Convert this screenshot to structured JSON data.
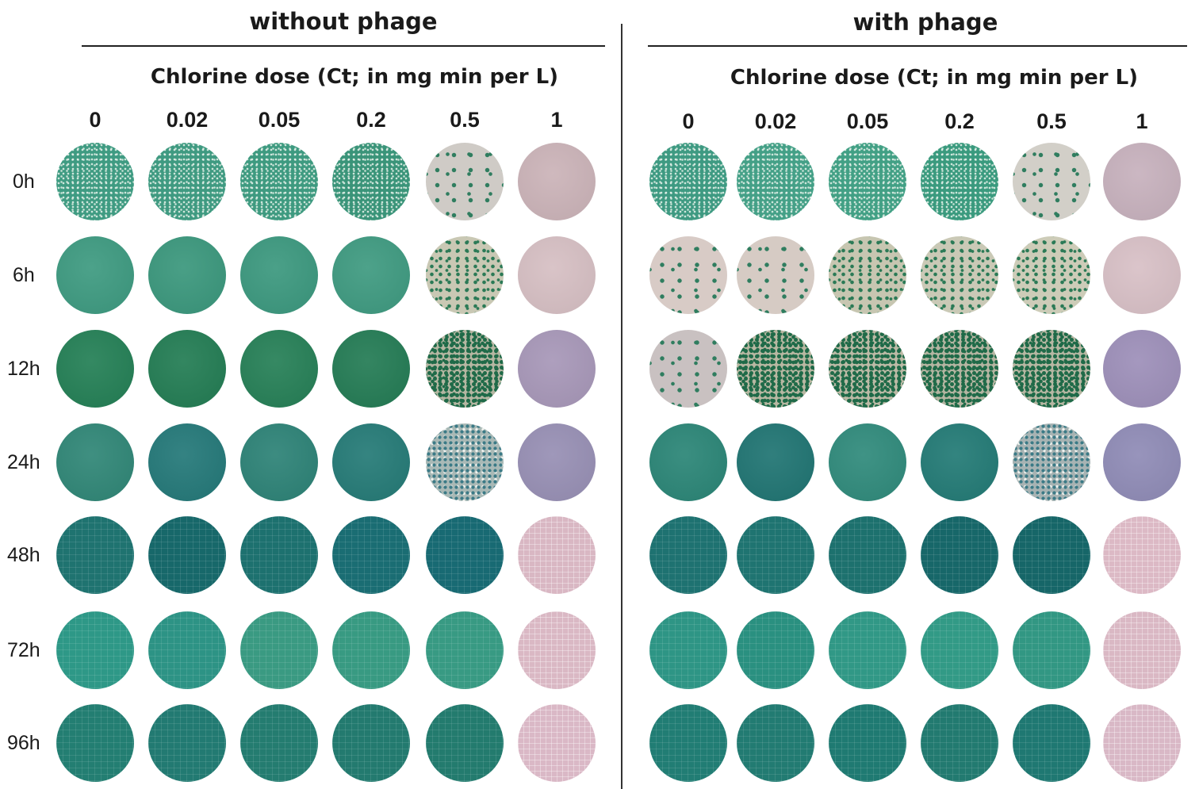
{
  "panels": [
    {
      "title": "without phage",
      "axis_title": "Chlorine dose (Ct; in mg min per L)",
      "doses": [
        "0",
        "0.02",
        "0.05",
        "0.2",
        "0.5",
        "1"
      ]
    },
    {
      "title": "with phage",
      "axis_title": "Chlorine dose (Ct; in mg min per L)",
      "doses": [
        "0",
        "0.02",
        "0.05",
        "0.2",
        "0.5",
        "1"
      ]
    }
  ],
  "times": [
    "0h",
    "6h",
    "12h",
    "24h",
    "48h",
    "72h",
    "96h"
  ],
  "plates": [
    [
      [
        {
          "type": "dense",
          "color": "#3f9b82"
        },
        {
          "type": "dense",
          "color": "#3f9a81"
        },
        {
          "type": "dense",
          "color": "#3e9a80"
        },
        {
          "type": "dense",
          "color": "#3a9479"
        },
        {
          "type": "sparse",
          "color": "#cfcbc6"
        },
        {
          "type": "solid",
          "color": "#cbb3b8"
        }
      ],
      [
        {
          "type": "solid",
          "color": "#3d9a80"
        },
        {
          "type": "solid",
          "color": "#3a977c"
        },
        {
          "type": "solid",
          "color": "#3b987e"
        },
        {
          "type": "solid",
          "color": "#3e9a80"
        },
        {
          "type": "speck",
          "color": "#c9c8b4"
        },
        {
          "type": "solid",
          "color": "#d6bfc3"
        }
      ],
      [
        {
          "type": "solid",
          "color": "#237f55"
        },
        {
          "type": "solid",
          "color": "#227c53"
        },
        {
          "type": "solid",
          "color": "#257f56"
        },
        {
          "type": "solid",
          "color": "#237b54"
        },
        {
          "type": "speck-dense",
          "color": "#b5b6a2"
        },
        {
          "type": "solid",
          "color": "#a797b8"
        }
      ],
      [
        {
          "type": "solid",
          "color": "#2f8676"
        },
        {
          "type": "solid",
          "color": "#237878"
        },
        {
          "type": "solid",
          "color": "#2c8276"
        },
        {
          "type": "solid",
          "color": "#247a76"
        },
        {
          "type": "speck-blue",
          "color": "#a9b9b6"
        },
        {
          "type": "solid",
          "color": "#978fb4"
        }
      ],
      [
        {
          "type": "grid",
          "color": "#1f7370"
        },
        {
          "type": "grid",
          "color": "#17686a"
        },
        {
          "type": "grid",
          "color": "#1d716f"
        },
        {
          "type": "grid",
          "color": "#1a6d73"
        },
        {
          "type": "grid",
          "color": "#186a73"
        },
        {
          "type": "pink-grid",
          "color": "#d9b7c3"
        }
      ],
      [
        {
          "type": "grid",
          "color": "#2e9887"
        },
        {
          "type": "grid",
          "color": "#2d9385"
        },
        {
          "type": "grid",
          "color": "#3a9a82"
        },
        {
          "type": "grid",
          "color": "#389a82"
        },
        {
          "type": "grid",
          "color": "#389a83"
        },
        {
          "type": "pink-grid",
          "color": "#dab8c4"
        }
      ],
      [
        {
          "type": "grid",
          "color": "#237e72"
        },
        {
          "type": "grid",
          "color": "#227a72"
        },
        {
          "type": "grid",
          "color": "#247c70"
        },
        {
          "type": "grid",
          "color": "#237a6f"
        },
        {
          "type": "grid",
          "color": "#237b6e"
        },
        {
          "type": "pink-grid",
          "color": "#dab8c6"
        }
      ]
    ],
    [
      [
        {
          "type": "dense",
          "color": "#3e9a82"
        },
        {
          "type": "dense",
          "color": "#44a087"
        },
        {
          "type": "dense",
          "color": "#42a085"
        },
        {
          "type": "dense",
          "color": "#3a9a7e"
        },
        {
          "type": "sparse",
          "color": "#d2cfc8"
        },
        {
          "type": "solid",
          "color": "#c7b1bd"
        }
      ],
      [
        {
          "type": "sparse-pink",
          "color": "#d8cbc6"
        },
        {
          "type": "sparse-pink",
          "color": "#d6cbc4"
        },
        {
          "type": "speck",
          "color": "#c7c6b1"
        },
        {
          "type": "speck",
          "color": "#cac9b6"
        },
        {
          "type": "speck",
          "color": "#cdccb8"
        },
        {
          "type": "solid",
          "color": "#d8c0c6"
        }
      ],
      [
        {
          "type": "sparse-pink",
          "color": "#c9c1c1"
        },
        {
          "type": "speck-dense",
          "color": "#b8b7a2"
        },
        {
          "type": "speck-dense",
          "color": "#bcbaa6"
        },
        {
          "type": "speck-dense",
          "color": "#b5b5a2"
        },
        {
          "type": "speck-dense",
          "color": "#b7b7a3"
        },
        {
          "type": "solid",
          "color": "#9d8fb9"
        }
      ],
      [
        {
          "type": "solid",
          "color": "#2a8576"
        },
        {
          "type": "solid",
          "color": "#1f7472"
        },
        {
          "type": "solid",
          "color": "#2f8a7b"
        },
        {
          "type": "solid",
          "color": "#227a75"
        },
        {
          "type": "speck-blue",
          "color": "#a7b3b3"
        },
        {
          "type": "solid",
          "color": "#8f8bb6"
        }
      ],
      [
        {
          "type": "grid",
          "color": "#1e7271"
        },
        {
          "type": "grid",
          "color": "#1f7471"
        },
        {
          "type": "grid",
          "color": "#1d716e"
        },
        {
          "type": "grid",
          "color": "#176769"
        },
        {
          "type": "grid",
          "color": "#166668"
        },
        {
          "type": "pink-grid",
          "color": "#dcb9c5"
        }
      ],
      [
        {
          "type": "grid",
          "color": "#2e9585"
        },
        {
          "type": "grid",
          "color": "#2a9080"
        },
        {
          "type": "grid",
          "color": "#319886"
        },
        {
          "type": "grid",
          "color": "#329a86"
        },
        {
          "type": "grid",
          "color": "#329783"
        },
        {
          "type": "pink-grid",
          "color": "#dab8c4"
        }
      ],
      [
        {
          "type": "grid",
          "color": "#217d74"
        },
        {
          "type": "grid",
          "color": "#227b72"
        },
        {
          "type": "grid",
          "color": "#1f7a72"
        },
        {
          "type": "grid",
          "color": "#227a70"
        },
        {
          "type": "grid",
          "color": "#1f7872"
        },
        {
          "type": "pink-grid",
          "color": "#d9b8c6"
        }
      ]
    ]
  ]
}
